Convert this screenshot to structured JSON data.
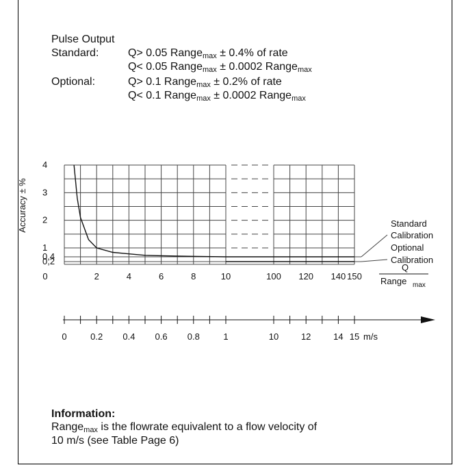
{
  "spec": {
    "title": "Pulse Output",
    "standard_label": "Standard:",
    "standard_line1": "Q> 0.05 Range",
    "standard_line1_sub": "max",
    "standard_line1_tail": " ± 0.4% of rate",
    "standard_line2": "Q< 0.05 Range",
    "standard_line2_sub": "max",
    "standard_line2_mid": " ± 0.0002 Range",
    "standard_line2_sub2": "max",
    "optional_label": "Optional:",
    "optional_line1": "Q> 0.1 Range",
    "optional_line1_sub": "max",
    "optional_line1_tail": " ± 0.2% of rate",
    "optional_line2": "Q<  0.1  Range",
    "optional_line2_sub": "max",
    "optional_line2_mid": " ± 0.0002 Range",
    "optional_line2_sub2": "max"
  },
  "chart_data": {
    "type": "line",
    "ylabel": "Accuracy ± %",
    "y_ticks": [
      "4",
      "3",
      "2",
      "1",
      "0,4",
      "0,2"
    ],
    "x_ticks_top": [
      "0",
      "2",
      "4",
      "6",
      "8",
      "10",
      "100",
      "120",
      "140",
      "150"
    ],
    "x_label_top_num": "Q",
    "x_label_top_den": "Range",
    "x_label_top_den_sub": "max",
    "x_ticks_bottom": [
      "0",
      "0.2",
      "0.4",
      "0.6",
      "0.8",
      "1",
      "10",
      "12",
      "14",
      "15"
    ],
    "x_label_bottom_unit": "m/s",
    "annotations": {
      "standard_line1": "Standard",
      "standard_line2": "Calibration",
      "optional_line1": "Optional",
      "optional_line2": "Calibration"
    },
    "series": [
      {
        "name": "Standard Calibration",
        "x": [
          0.6,
          0.8,
          1,
          1.5,
          2,
          3,
          4,
          5,
          6,
          8,
          10,
          100,
          150
        ],
        "y": [
          4,
          2.8,
          2.1,
          1.3,
          1.0,
          0.7,
          0.6,
          0.5,
          0.47,
          0.43,
          0.4,
          0.4,
          0.4
        ]
      },
      {
        "name": "Optional Calibration",
        "x": [
          10,
          100,
          150
        ],
        "y": [
          0.2,
          0.2,
          0.2
        ]
      }
    ],
    "ylim": [
      0,
      4
    ],
    "grid": true
  },
  "info": {
    "title": "Information:",
    "line1_a": "Range",
    "line1_sub": "max",
    "line1_b": " is the flowrate equivalent to a flow velocity of",
    "line2": "10 m/s (see Table Page 6)"
  }
}
